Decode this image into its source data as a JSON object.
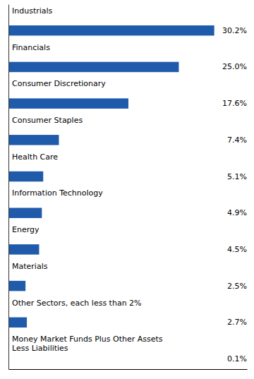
{
  "chart_data": {
    "type": "bar",
    "orientation": "horizontal",
    "categories": [
      "Industrials",
      "Financials",
      "Consumer Discretionary",
      "Consumer Staples",
      "Health Care",
      "Information Technology",
      "Energy",
      "Materials",
      "Other Sectors, each less than 2%",
      "Money Market Funds Plus Other Assets\nLess Liabilities"
    ],
    "values": [
      30.2,
      25.0,
      17.6,
      7.4,
      5.1,
      4.9,
      4.5,
      2.5,
      2.7,
      0.1
    ],
    "value_labels": [
      "30.2%",
      "25.0%",
      "17.6%",
      "7.4%",
      "5.1%",
      "4.9%",
      "4.5%",
      "2.5%",
      "2.7%",
      "0.1%"
    ],
    "data_labels": true,
    "color": "#1F5BAA",
    "xlim": [
      0,
      35
    ],
    "xticks": [],
    "tick_labels": false
  }
}
